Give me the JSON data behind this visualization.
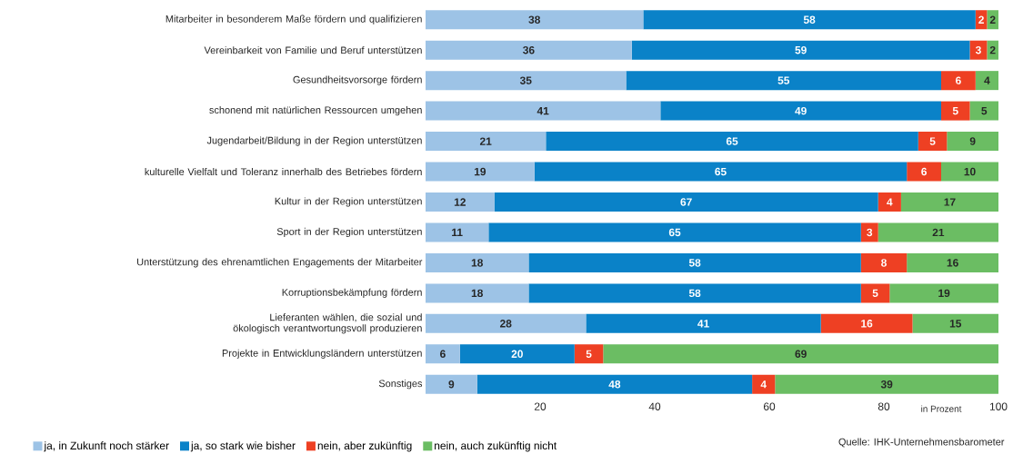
{
  "chart_data": {
    "type": "bar",
    "orientation": "horizontal",
    "stacked": true,
    "data_labels": true,
    "legend": "bottom",
    "grid": false,
    "xlabel": "in Prozent",
    "xlim": [
      0,
      100
    ],
    "xticks": [
      20,
      40,
      60,
      80,
      100
    ],
    "categories": [
      "Mitarbeiter in besonderem Maße fördern und qualifizieren",
      "Vereinbarkeit von Familie und Beruf unterstützen",
      "Gesundheitsvorsorge fördern",
      "schonend mit natürlichen Ressourcen umgehen",
      "Jugendarbeit/Bildung in der Region unterstützen",
      "kulturelle Vielfalt und Toleranz innerhalb des Betriebes fördern",
      "Kultur in der Region unterstützen",
      "Sport in der Region unterstützen",
      "Unterstützung des ehrenamtlichen Engagements der Mitarbeiter",
      "Korruptionsbekämpfung fördern",
      "Lieferanten wählen, die sozial und ökologisch verantwortungsvoll produzieren",
      "Projekte in Entwicklungsländern unterstützen",
      "Sonstiges"
    ],
    "series": [
      {
        "name": "ja, in Zukunft noch stärker",
        "color": "#9dc3e6",
        "values": [
          38,
          36,
          35,
          41,
          21,
          19,
          12,
          11,
          18,
          18,
          28,
          6,
          9
        ]
      },
      {
        "name": "ja, so stark wie bisher",
        "color": "#0a82c8",
        "values": [
          58,
          59,
          55,
          49,
          65,
          65,
          67,
          65,
          58,
          58,
          41,
          20,
          48
        ]
      },
      {
        "name": "nein, aber zukünftig",
        "color": "#ee4023",
        "values": [
          2,
          3,
          6,
          5,
          5,
          6,
          4,
          3,
          8,
          5,
          16,
          5,
          4
        ]
      },
      {
        "name": "nein, auch zukünftig nicht",
        "color": "#6bbd63",
        "values": [
          2,
          2,
          4,
          5,
          9,
          10,
          17,
          21,
          16,
          19,
          15,
          69,
          39
        ]
      }
    ],
    "annotations": [
      "Quelle: IHK-Unternehmensbarometer"
    ]
  }
}
